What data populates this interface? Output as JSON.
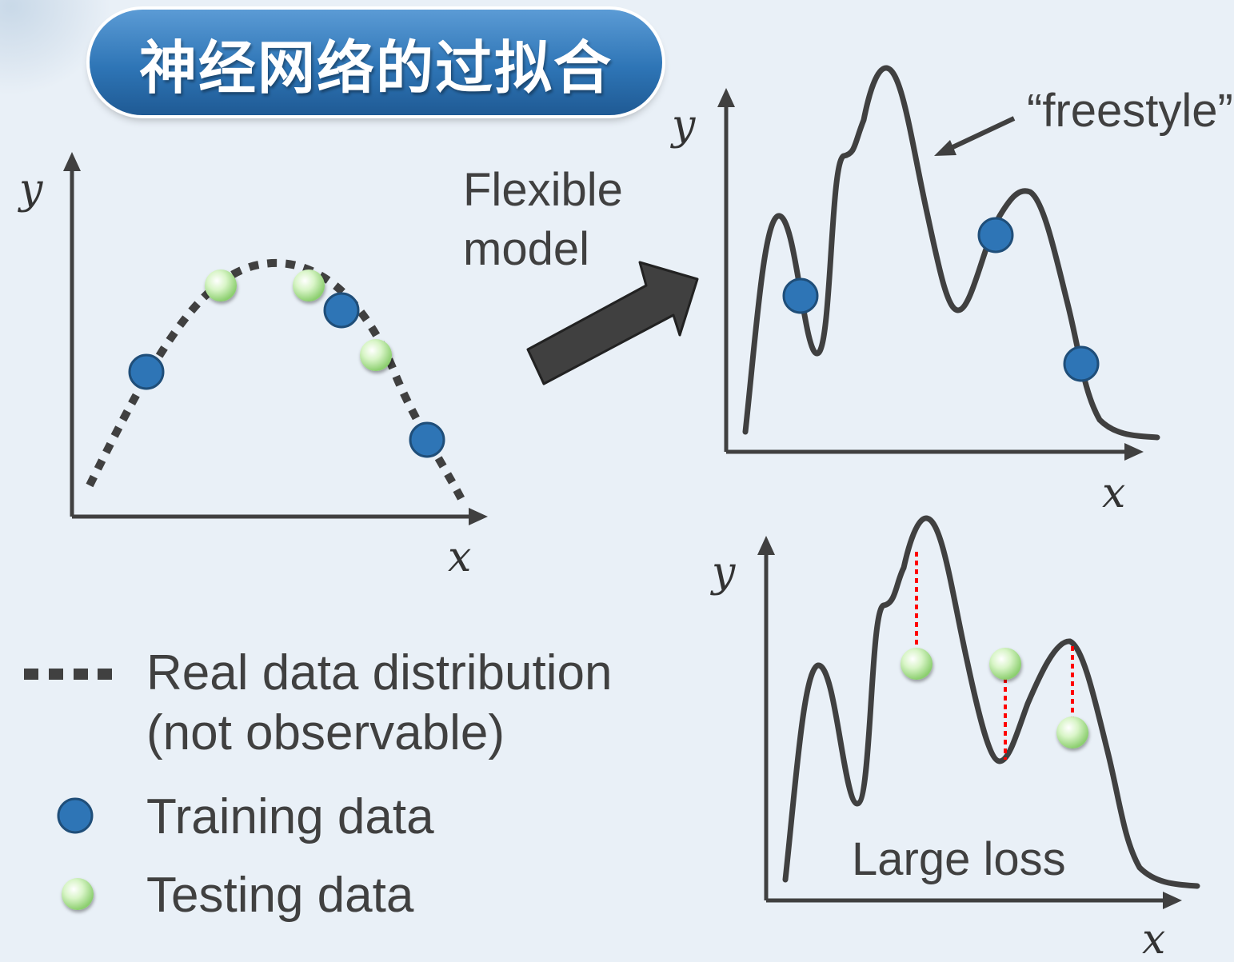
{
  "title": "神经网络的过拟合",
  "labels": {
    "flexible_line1": "Flexible",
    "flexible_line2": "model",
    "freestyle": "“freestyle”",
    "large_loss": "Large loss"
  },
  "axes": {
    "x": "x",
    "y": "y"
  },
  "legend": {
    "real_line1": "Real data distribution",
    "real_line2": "(not observable)",
    "training": "Training data",
    "testing": "Testing data"
  },
  "colors": {
    "title_bg": "#2e75b6",
    "training_point": "#2e75b6",
    "testing_point": "#c6f0b0",
    "curve": "#404040",
    "loss_line": "#ff0000",
    "background": "#e9f0f7"
  }
}
